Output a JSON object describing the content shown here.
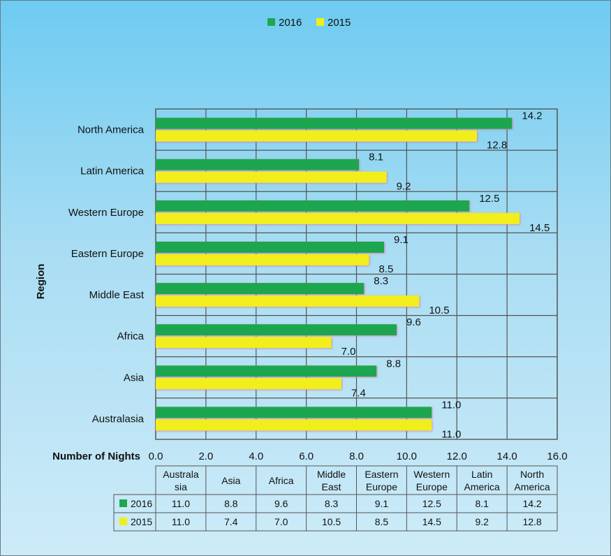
{
  "chart_data": {
    "type": "bar",
    "orientation": "horizontal",
    "title": "",
    "xlabel": "Number of Nights",
    "ylabel": "Region",
    "xlim": [
      0,
      16
    ],
    "xticks": [
      "0.0",
      "2.0",
      "4.0",
      "6.0",
      "8.0",
      "10.0",
      "12.0",
      "14.0",
      "16.0"
    ],
    "grid": true,
    "legend_position": "top",
    "categories": [
      "Australasia",
      "Asia",
      "Africa",
      "Middle East",
      "Eastern Europe",
      "Western Europe",
      "Latin America",
      "North America"
    ],
    "series": [
      {
        "name": "2016",
        "color": "#1fa64f",
        "values": [
          11.0,
          8.8,
          9.6,
          8.3,
          9.1,
          12.5,
          8.1,
          14.2
        ]
      },
      {
        "name": "2015",
        "color": "#f2ee1c",
        "values": [
          11.0,
          7.4,
          7.0,
          10.5,
          8.5,
          14.5,
          9.2,
          12.8
        ]
      }
    ],
    "value_labels": {
      "2016": [
        "11.0",
        "8.8",
        "9.6",
        "8.3",
        "9.1",
        "12.5",
        "8.1",
        "14.2"
      ],
      "2015": [
        "11.0",
        "7.4",
        "7.0",
        "10.5",
        "8.5",
        "14.5",
        "9.2",
        "12.8"
      ]
    },
    "data_table": {
      "headers": [
        [
          "Australa",
          "sia"
        ],
        [
          "Asia"
        ],
        [
          "Africa"
        ],
        [
          "Middle",
          "East"
        ],
        [
          "Eastern",
          "Europe"
        ],
        [
          "Western",
          "Europe"
        ],
        [
          "Latin",
          "America"
        ],
        [
          "North",
          "America"
        ]
      ],
      "rows": [
        {
          "series": "2016",
          "cells": [
            "11.0",
            "8.8",
            "9.6",
            "8.3",
            "9.1",
            "12.5",
            "8.1",
            "14.2"
          ]
        },
        {
          "series": "2015",
          "cells": [
            "11.0",
            "7.4",
            "7.0",
            "10.5",
            "8.5",
            "14.5",
            "9.2",
            "12.8"
          ]
        }
      ]
    }
  }
}
